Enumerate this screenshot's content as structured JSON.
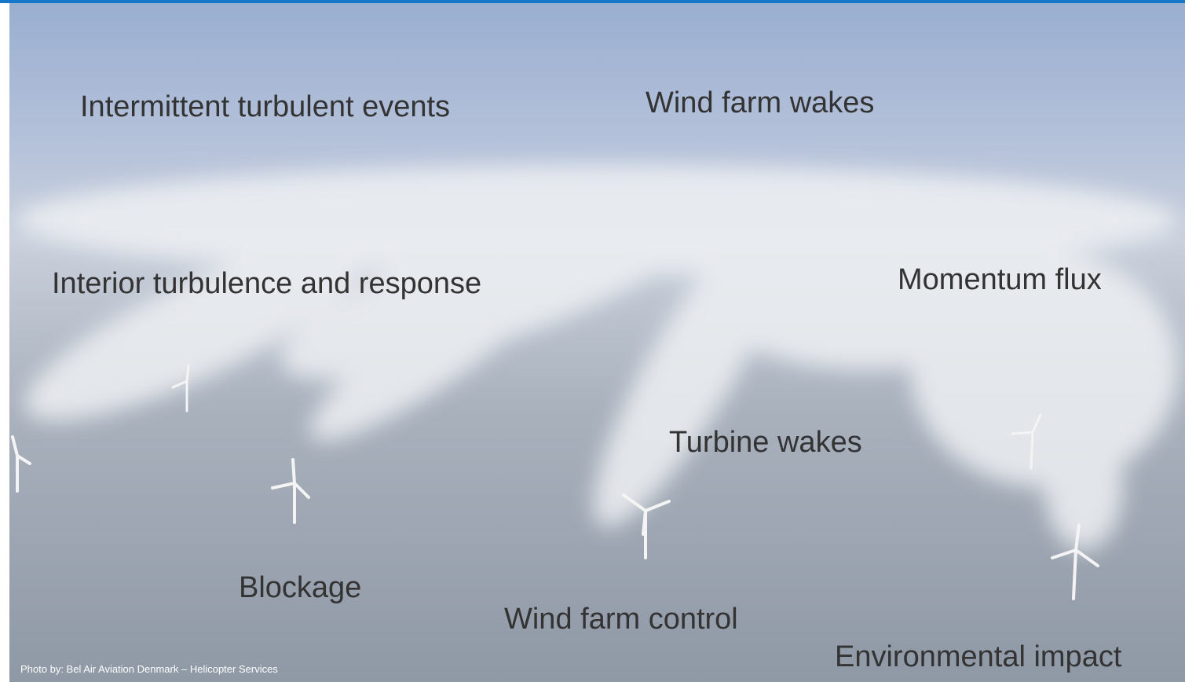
{
  "labels": {
    "intermittent": "Intermittent turbulent events",
    "farm_wakes": "Wind farm wakes",
    "interior": "Interior turbulence and response",
    "momentum": "Momentum flux",
    "turbine_wakes": "Turbine wakes",
    "blockage": "Blockage",
    "control": "Wind farm control",
    "environmental": "Environmental impact"
  },
  "credit": "Photo by: Bel Air Aviation Denmark – Helicopter Services"
}
